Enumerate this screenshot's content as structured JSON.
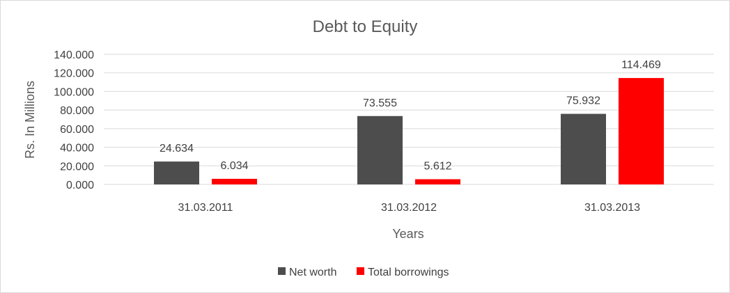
{
  "chart_data": {
    "type": "bar",
    "title": "Debt to Equity",
    "xlabel": "Years",
    "ylabel": "Rs. In Millions",
    "categories": [
      "31.03.2011",
      "31.03.2012",
      "31.03.2013"
    ],
    "series": [
      {
        "name": "Net worth",
        "values": [
          24.634,
          73.555,
          75.932
        ],
        "color": "#4d4d4d"
      },
      {
        "name": "Total borrowings",
        "values": [
          6.034,
          5.612,
          114.469
        ],
        "color": "#ff0000"
      }
    ],
    "ylim": [
      0,
      140
    ],
    "yticks": [
      "0.000",
      "20.000",
      "40.000",
      "60.000",
      "80.000",
      "100.000",
      "120.000",
      "140.000"
    ],
    "data_labels": [
      [
        "24.634",
        "73.555",
        "75.932"
      ],
      [
        "6.034",
        "5.612",
        "114.469"
      ]
    ],
    "grid": true,
    "legend": "bottom"
  }
}
